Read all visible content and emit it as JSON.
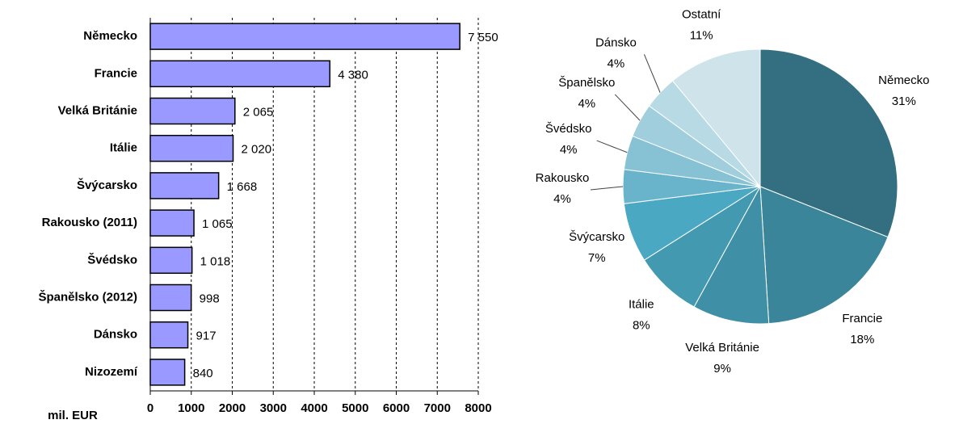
{
  "chart_data": [
    {
      "type": "hbar",
      "categories": [
        "Německo",
        "Francie",
        "Velká Británie",
        "Itálie",
        "Švýcarsko",
        "Rakousko (2011)",
        "Švédsko",
        "Španělsko (2012)",
        "Dánsko",
        "Nizozemí"
      ],
      "values": [
        7550,
        4380,
        2065,
        2020,
        1668,
        1065,
        1018,
        998,
        917,
        840
      ],
      "value_labels": [
        "7 550",
        "4 380",
        "2 065",
        "2 020",
        "1 668",
        "1 065",
        "1 018",
        "998",
        "917",
        "840"
      ],
      "color": "#9999ff",
      "x_label": "mil. EUR",
      "xlim": [
        0,
        8000
      ],
      "xticks": [
        0,
        1000,
        2000,
        3000,
        4000,
        5000,
        6000,
        7000,
        8000
      ],
      "grid": true
    },
    {
      "type": "pie",
      "categories": [
        "Německo",
        "Francie",
        "Velká Británie",
        "Itálie",
        "Švýcarsko",
        "Rakousko",
        "Švédsko",
        "Španělsko",
        "Dánsko",
        "Ostatní"
      ],
      "values": [
        31,
        18,
        9,
        8,
        7,
        4,
        4,
        4,
        4,
        11
      ],
      "value_labels": [
        "31%",
        "18%",
        "9%",
        "8%",
        "7%",
        "4%",
        "4%",
        "4%",
        "4%",
        "11%"
      ],
      "colors": [
        "#336f80",
        "#3a8599",
        "#3f8fa6",
        "#4399b0",
        "#4aa8c2",
        "#69b4cb",
        "#86c2d4",
        "#a0cedc",
        "#b8dae4",
        "#cfe3eb"
      ]
    }
  ]
}
